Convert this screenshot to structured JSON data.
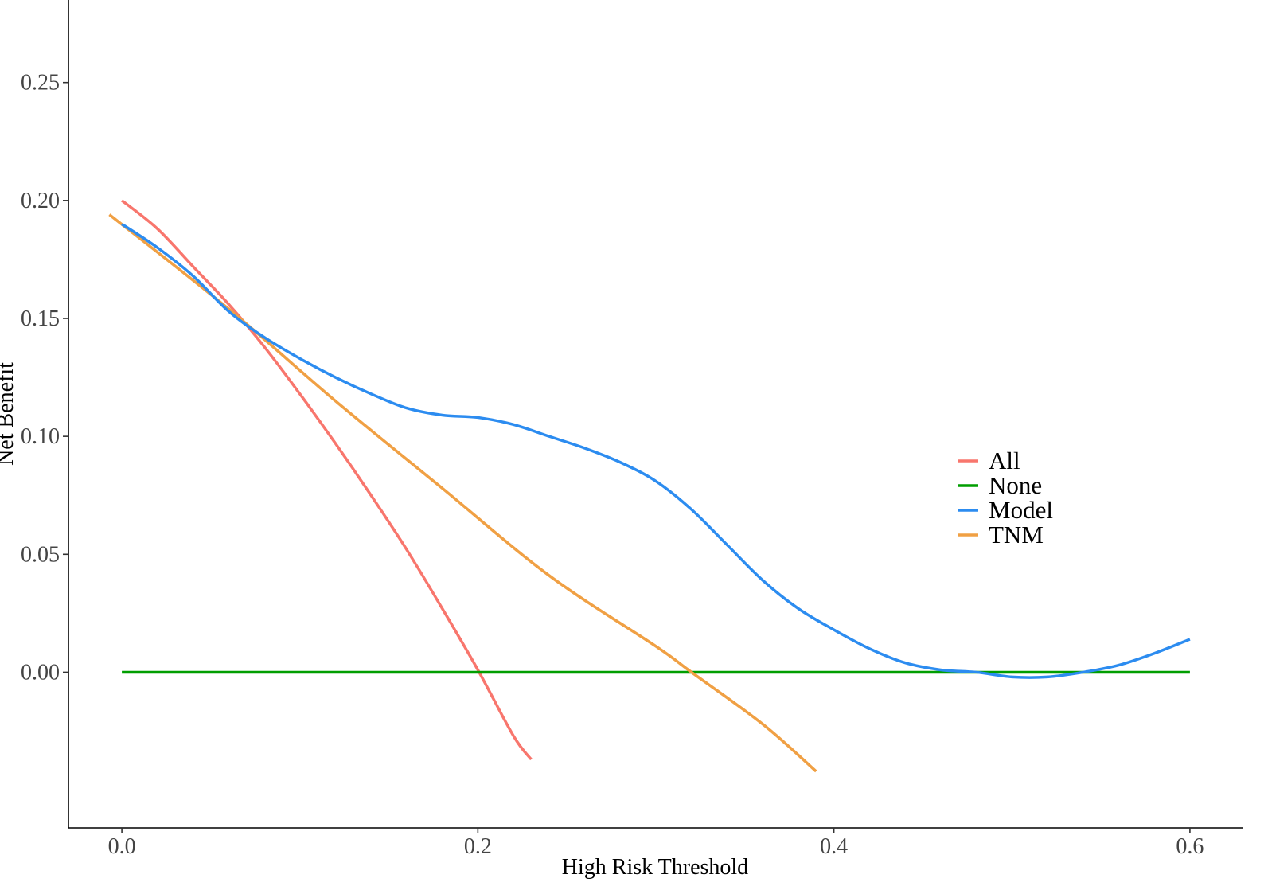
{
  "chart_data": {
    "type": "line",
    "title": "",
    "xlabel": "High Risk Threshold",
    "ylabel": "Net Benefit",
    "xlim": [
      -0.03,
      0.63
    ],
    "ylim": [
      -0.066,
      0.285
    ],
    "xticks": [
      0.0,
      0.2,
      0.4,
      0.6
    ],
    "xtick_labels": [
      "0.0",
      "0.2",
      "0.4",
      "0.6"
    ],
    "yticks": [
      0.0,
      0.05,
      0.1,
      0.15,
      0.2,
      0.25
    ],
    "ytick_labels": [
      "0.00",
      "0.05",
      "0.10",
      "0.15",
      "0.20",
      "0.25"
    ],
    "grid": false,
    "legend_position": "right",
    "series": [
      {
        "name": "All",
        "color": "#F8766D",
        "points": [
          [
            0.0,
            0.2
          ],
          [
            0.02,
            0.188
          ],
          [
            0.04,
            0.172
          ],
          [
            0.06,
            0.156
          ],
          [
            0.08,
            0.138
          ],
          [
            0.1,
            0.118
          ],
          [
            0.12,
            0.097
          ],
          [
            0.14,
            0.075
          ],
          [
            0.16,
            0.052
          ],
          [
            0.18,
            0.027
          ],
          [
            0.2,
            0.001
          ],
          [
            0.22,
            -0.027
          ],
          [
            0.23,
            -0.037
          ]
        ]
      },
      {
        "name": "None",
        "color": "#009E00",
        "points": [
          [
            0.0,
            0.0
          ],
          [
            0.6,
            0.0
          ]
        ]
      },
      {
        "name": "Model",
        "color": "#2C8CF0",
        "points": [
          [
            0.0,
            0.19
          ],
          [
            0.02,
            0.18
          ],
          [
            0.04,
            0.168
          ],
          [
            0.06,
            0.153
          ],
          [
            0.08,
            0.142
          ],
          [
            0.1,
            0.133
          ],
          [
            0.12,
            0.125
          ],
          [
            0.14,
            0.118
          ],
          [
            0.16,
            0.112
          ],
          [
            0.18,
            0.109
          ],
          [
            0.2,
            0.108
          ],
          [
            0.22,
            0.105
          ],
          [
            0.24,
            0.1
          ],
          [
            0.26,
            0.095
          ],
          [
            0.28,
            0.089
          ],
          [
            0.3,
            0.081
          ],
          [
            0.32,
            0.069
          ],
          [
            0.34,
            0.054
          ],
          [
            0.36,
            0.039
          ],
          [
            0.38,
            0.027
          ],
          [
            0.4,
            0.018
          ],
          [
            0.42,
            0.01
          ],
          [
            0.44,
            0.004
          ],
          [
            0.46,
            0.001
          ],
          [
            0.48,
            0.0
          ],
          [
            0.5,
            -0.002
          ],
          [
            0.52,
            -0.002
          ],
          [
            0.54,
            0.0
          ],
          [
            0.56,
            0.003
          ],
          [
            0.58,
            0.008
          ],
          [
            0.6,
            0.014
          ]
        ]
      },
      {
        "name": "TNM",
        "color": "#F0A044",
        "points": [
          [
            -0.007,
            0.194
          ],
          [
            0.06,
            0.154
          ],
          [
            0.12,
            0.115
          ],
          [
            0.18,
            0.078
          ],
          [
            0.24,
            0.041
          ],
          [
            0.3,
            0.011
          ],
          [
            0.32,
            0.0
          ],
          [
            0.36,
            -0.022
          ],
          [
            0.39,
            -0.042
          ]
        ]
      }
    ]
  }
}
